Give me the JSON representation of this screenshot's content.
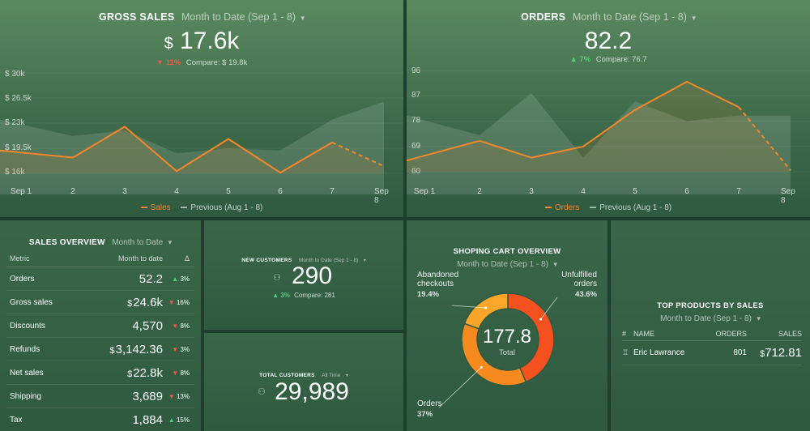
{
  "gross_sales": {
    "title": "GROSS SALES",
    "period": "Month to Date (Sep 1 - 8)",
    "currency": "$",
    "value": "17.6k",
    "delta": "11%",
    "compare": "Compare: $ 19.8k",
    "legend": {
      "current": "Sales",
      "previous": "Previous (Aug 1 - 8)"
    }
  },
  "orders": {
    "title": "ORDERS",
    "period": "Month to Date (Sep 1 - 8)",
    "value": "82.2",
    "delta": "7%",
    "compare": "Compare: 76.7",
    "legend": {
      "current": "Orders",
      "previous": "Previous (Aug 1 - 8)"
    }
  },
  "chart_data": [
    {
      "type": "line",
      "title": "GROSS SALES",
      "categories": [
        "Sep 1",
        "2",
        "3",
        "4",
        "5",
        "6",
        "7",
        "Sep 8"
      ],
      "y_ticks": [
        "$ 30k",
        "$ 26.5k",
        "$ 23k",
        "$ 19.5k",
        "$ 16k"
      ],
      "ylim": [
        16,
        30
      ],
      "series": [
        {
          "name": "Sales",
          "values": [
            19.2,
            18.2,
            22.5,
            16.3,
            20.8,
            16.1,
            20.3,
            17.0
          ]
        },
        {
          "name": "Previous (Aug 1 - 8)",
          "values": [
            23.5,
            21.2,
            22.0,
            18.8,
            19.5,
            19.2,
            23.5,
            26.0
          ]
        }
      ]
    },
    {
      "type": "line",
      "title": "ORDERS",
      "categories": [
        "Sep 1",
        "2",
        "3",
        "4",
        "5",
        "6",
        "7",
        "Sep 8"
      ],
      "y_ticks": [
        "96",
        "87",
        "78",
        "69",
        "60"
      ],
      "ylim": [
        60,
        96
      ],
      "series": [
        {
          "name": "Orders",
          "values": [
            64,
            71,
            65,
            69,
            82,
            92,
            83,
            60.5
          ]
        },
        {
          "name": "Previous (Aug 1 - 8)",
          "values": [
            80,
            73,
            88,
            65,
            85,
            78,
            80,
            80
          ]
        }
      ]
    },
    {
      "type": "pie",
      "title": "SHOPING CART OVERVIEW",
      "labels": [
        "Unfulfilled orders",
        "Orders",
        "Abandoned checkouts"
      ],
      "values": [
        43.6,
        37,
        19.4
      ],
      "center_value": "177.8",
      "center_label": "Total"
    }
  ],
  "sales_overview": {
    "title": "SALES OVERVIEW",
    "period": "Month to Date",
    "headers": [
      "Metric",
      "Month to date",
      "Δ"
    ],
    "rows": [
      {
        "metric": "Orders",
        "cur": "",
        "value": "52.2",
        "dir": "up",
        "delta": "3%"
      },
      {
        "metric": "Gross sales",
        "cur": "$",
        "value": "24.6k",
        "dir": "down",
        "delta": "16%"
      },
      {
        "metric": "Discounts",
        "cur": "",
        "value": "4,570",
        "dir": "down",
        "delta": "8%"
      },
      {
        "metric": "Refunds",
        "cur": "$",
        "value": "3,142.36",
        "dir": "down",
        "delta": "3%"
      },
      {
        "metric": "Net sales",
        "cur": "$",
        "value": "22.8k",
        "dir": "down",
        "delta": "8%"
      },
      {
        "metric": "Shipping",
        "cur": "",
        "value": "3,689",
        "dir": "down",
        "delta": "13%"
      },
      {
        "metric": "Tax",
        "cur": "",
        "value": "1,884",
        "dir": "up",
        "delta": "15%"
      }
    ]
  },
  "new_customers": {
    "title": "NEW CUSTOMERS",
    "period": "Month to Date (Sep 1 - 8)",
    "value": "290",
    "delta": "3%",
    "compare": "Compare: 281"
  },
  "total_customers": {
    "title": "TOTAL CUSTOMERS",
    "period": "All Time",
    "value": "29,989"
  },
  "cart": {
    "title": "SHOPING CART OVERVIEW",
    "period": "Month to Date (Sep 1 - 8)",
    "abandoned_label_1": "Abandoned",
    "abandoned_label_2": "checkouts",
    "abandoned_pct": "19.4%",
    "unfulfilled_label_1": "Unfulfilled",
    "unfulfilled_label_2": "orders",
    "unfulfilled_pct": "43.6%",
    "orders_label": "Orders",
    "orders_pct": "37%",
    "center_value": "177.8",
    "center_label": "Total"
  },
  "top_products": {
    "title": "TOP PRODUCTS BY SALES",
    "period": "Month to Date (Sep 1 - 8)",
    "headers": [
      "#",
      "NAME",
      "ORDERS",
      "SALES"
    ],
    "rows": [
      {
        "name": "Eric Lawrance",
        "orders": "801",
        "cur": "$",
        "sales": "712.81"
      }
    ]
  },
  "colors": {
    "orange": "#f5872a",
    "up": "#4ed27a",
    "down": "#ef5b4b",
    "donut_red": "#f4511e",
    "donut_orange": "#f78a1e",
    "donut_yellow": "#fba529"
  }
}
